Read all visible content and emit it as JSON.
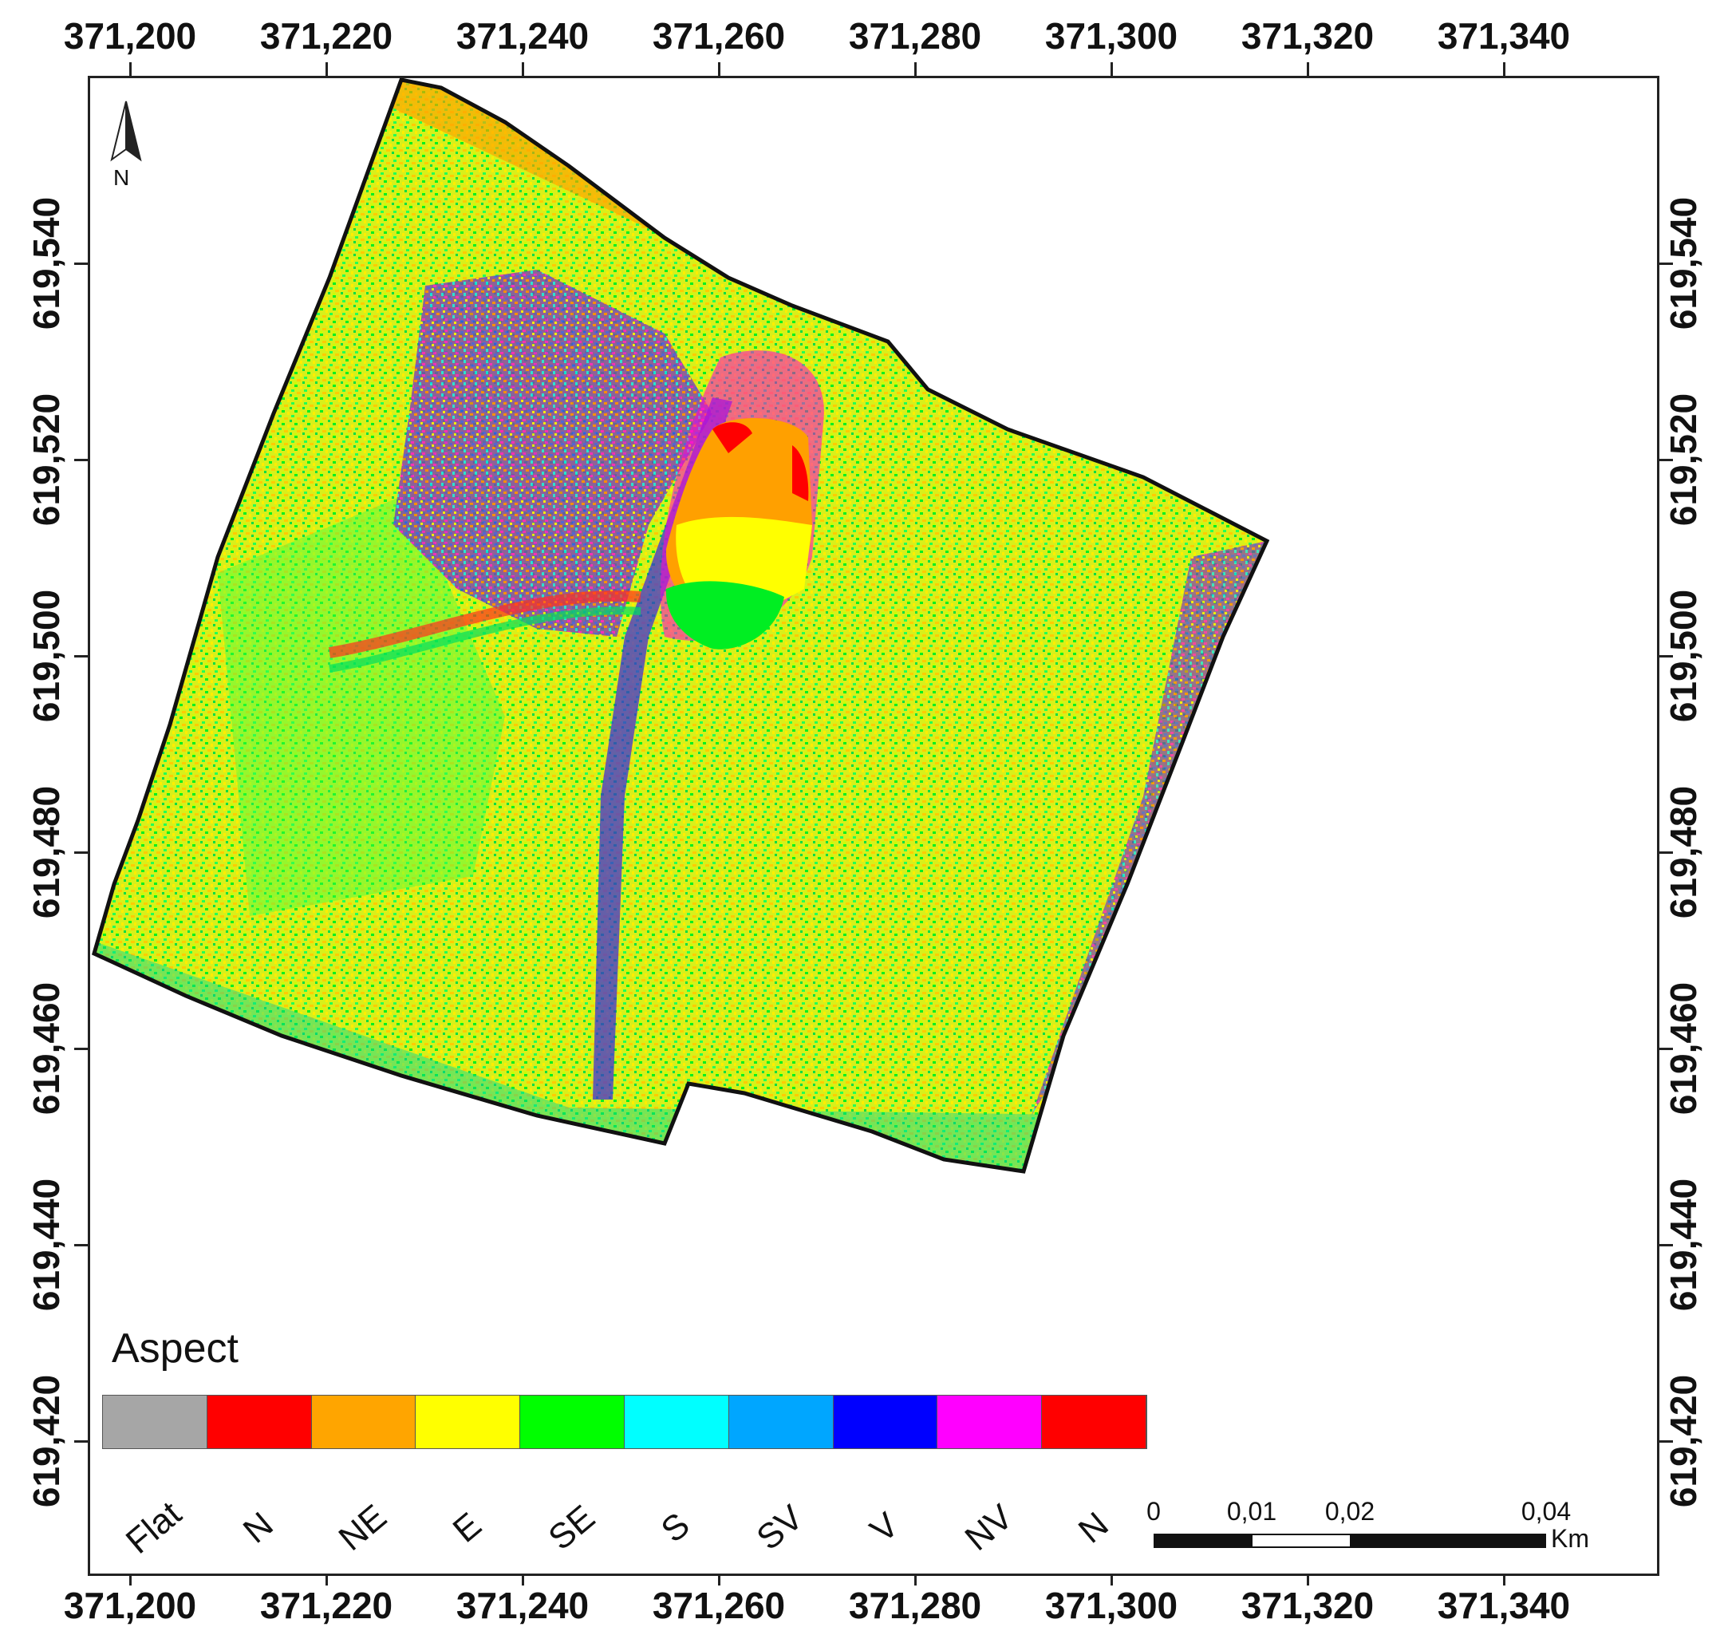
{
  "map": {
    "x_ticks": [
      "371,200",
      "371,220",
      "371,240",
      "371,260",
      "371,280",
      "371,300",
      "371,320",
      "371,340"
    ],
    "y_ticks": [
      "619,540",
      "619,520",
      "619,500",
      "619,480",
      "619,460",
      "619,440",
      "619,420"
    ],
    "north_label": "N"
  },
  "legend": {
    "title": "Aspect",
    "classes": [
      {
        "label": "Flat",
        "color": "#a6a6a6"
      },
      {
        "label": "N",
        "color": "#ff0000"
      },
      {
        "label": "NE",
        "color": "#ffa500"
      },
      {
        "label": "E",
        "color": "#ffff00"
      },
      {
        "label": "SE",
        "color": "#00ff00"
      },
      {
        "label": "S",
        "color": "#00ffff"
      },
      {
        "label": "SV",
        "color": "#00a6ff"
      },
      {
        "label": "V",
        "color": "#0000ff"
      },
      {
        "label": "NV",
        "color": "#ff00ff"
      },
      {
        "label": "N",
        "color": "#ff0000"
      }
    ]
  },
  "scale_bar": {
    "labels": [
      "0",
      "0,01",
      "0,02",
      "0,04"
    ],
    "unit": "Km"
  }
}
